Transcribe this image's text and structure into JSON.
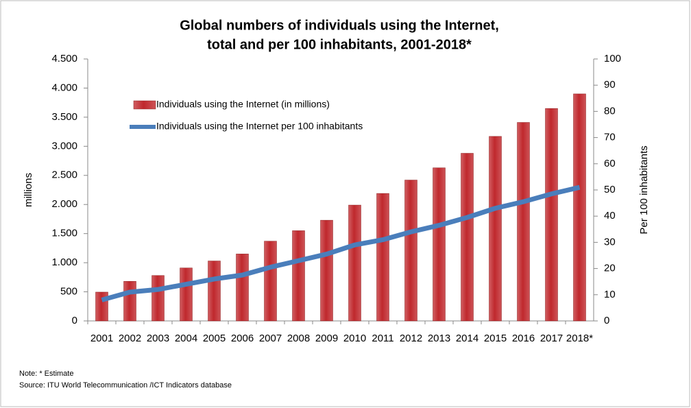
{
  "chart_data": {
    "type": "bar_line",
    "title": [
      "Global numbers of individuals using the Internet,",
      "total and per 100 inhabitants, 2001-2018*"
    ],
    "y_label": "millions",
    "y2_label": "Per 100 inhabitants",
    "categories": [
      "2001",
      "2002",
      "2003",
      "2004",
      "2005",
      "2006",
      "2007",
      "2008",
      "2009",
      "2010",
      "2011",
      "2012",
      "2013",
      "2014",
      "2015",
      "2016",
      "2017",
      "2018*"
    ],
    "series": [
      {
        "name": "Individuals using the Internet (in millions)",
        "type": "bar",
        "color": "#c0282d",
        "values": [
          495,
          680,
          780,
          910,
          1030,
          1150,
          1370,
          1550,
          1730,
          1990,
          2190,
          2420,
          2630,
          2880,
          3170,
          3410,
          3650,
          3900
        ]
      },
      {
        "name": "Individuals using the Internet per 100 inhabitants",
        "type": "line",
        "axis": "y2",
        "color": "#4a7ebb",
        "values": [
          8,
          11,
          12,
          14,
          16,
          17.5,
          20.5,
          23,
          25.5,
          29,
          31,
          34,
          36.5,
          39.5,
          43,
          45.5,
          48.5,
          51
        ]
      }
    ],
    "ylim": [
      0,
      4500
    ],
    "yticks": [
      0,
      500,
      {
        "value": 1000,
        "label": "1.000"
      },
      {
        "value": 1500,
        "label": "1.500"
      },
      {
        "value": 2000,
        "label": "2.000"
      },
      {
        "value": 2500,
        "label": "2.500"
      },
      {
        "value": 3000,
        "label": "3.000"
      },
      {
        "value": 3500,
        "label": "3.500"
      },
      {
        "value": 4000,
        "label": "4.000"
      },
      {
        "value": 4500,
        "label": "4.500"
      }
    ],
    "y2lim": [
      0,
      100
    ],
    "y2ticks": [
      0,
      10,
      20,
      30,
      40,
      50,
      60,
      70,
      80,
      90,
      100
    ],
    "notes": [
      "Note: * Estimate",
      "Source:  ITU World Telecommunication /ICT Indicators database"
    ]
  }
}
